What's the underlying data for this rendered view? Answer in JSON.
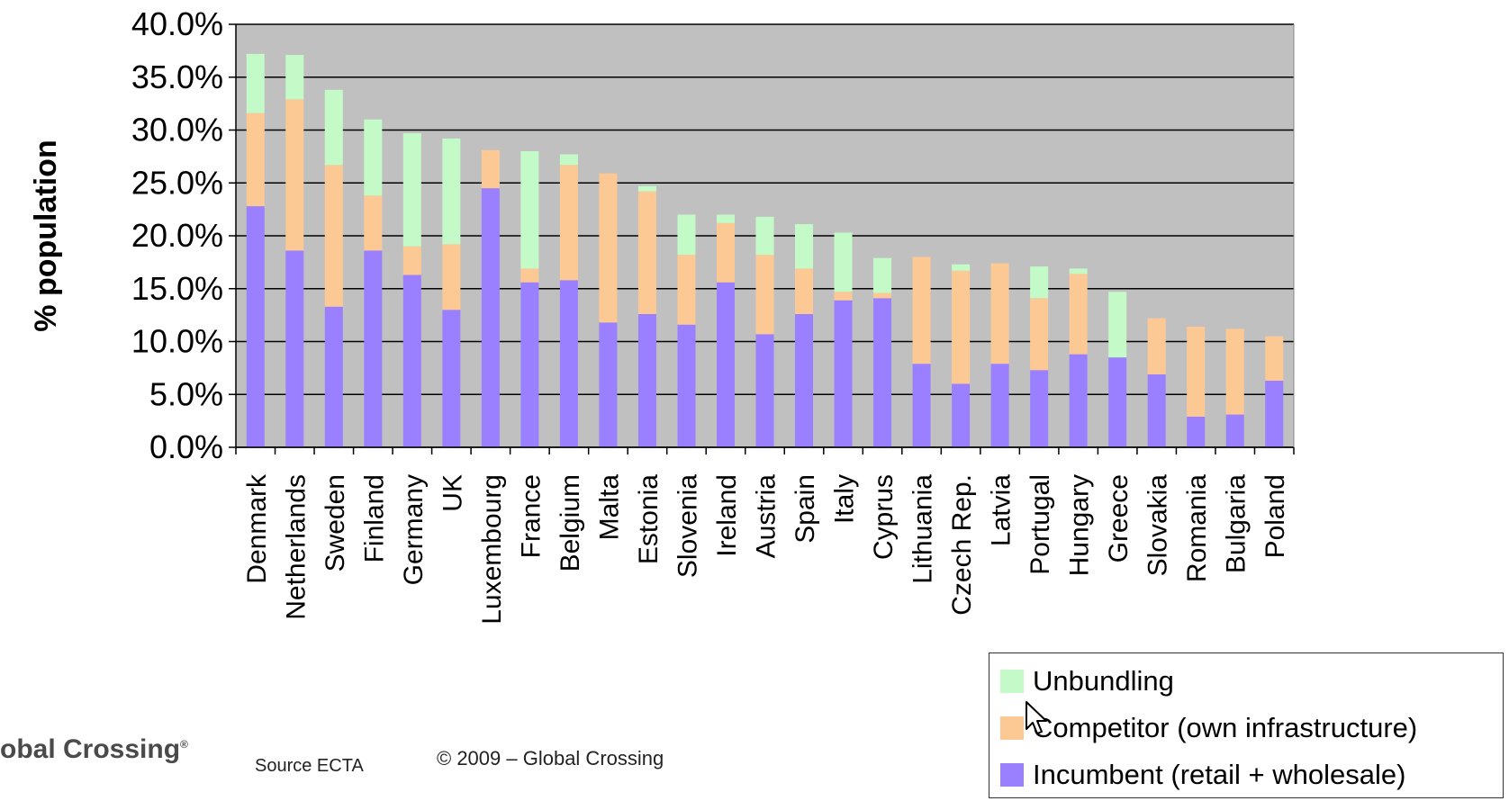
{
  "chart_data": {
    "type": "bar",
    "stacked": true,
    "ylabel": "% population",
    "ylim": [
      0,
      40
    ],
    "yticks": [
      "0.0%",
      "5.0%",
      "10.0%",
      "15.0%",
      "20.0%",
      "25.0%",
      "30.0%",
      "35.0%",
      "40.0%"
    ],
    "categories": [
      "Denmark",
      "Netherlands",
      "Sweden",
      "Finland",
      "Germany",
      "UK",
      "Luxembourg",
      "France",
      "Belgium",
      "Malta",
      "Estonia",
      "Slovenia",
      "Ireland",
      "Austria",
      "Spain",
      "Italy",
      "Cyprus",
      "Lithuania",
      "Czech Rep.",
      "Latvia",
      "Portugal",
      "Hungary",
      "Greece",
      "Slovakia",
      "Romania",
      "Bulgaria",
      "Poland"
    ],
    "series": [
      {
        "name": "Incumbent (retail + wholesale)",
        "color": "#9a80ff",
        "values": [
          22.8,
          18.6,
          13.3,
          18.6,
          16.3,
          13.0,
          24.5,
          15.6,
          15.8,
          11.8,
          12.6,
          11.6,
          15.6,
          10.7,
          12.6,
          13.9,
          14.1,
          7.9,
          6.0,
          7.9,
          7.3,
          8.8,
          8.5,
          6.9,
          2.9,
          3.1,
          6.3
        ]
      },
      {
        "name": "Competitor (own infrastructure)",
        "color": "#fcc994",
        "values": [
          8.8,
          14.3,
          13.4,
          5.2,
          2.7,
          6.2,
          3.6,
          1.3,
          10.9,
          14.1,
          11.6,
          6.6,
          5.6,
          7.5,
          4.3,
          0.8,
          0.5,
          10.1,
          10.7,
          9.5,
          6.8,
          7.6,
          0.0,
          5.3,
          8.5,
          8.1,
          4.2
        ]
      },
      {
        "name": "Unbundling",
        "color": "#c4fac8",
        "values": [
          5.6,
          4.2,
          7.1,
          7.2,
          10.7,
          10.0,
          0.0,
          11.1,
          1.0,
          0.0,
          0.5,
          3.8,
          0.8,
          3.6,
          4.2,
          5.6,
          3.3,
          0.0,
          0.6,
          0.0,
          3.0,
          0.5,
          6.2,
          0.0,
          0.0,
          0.0,
          0.0
        ]
      }
    ],
    "legend_position": "bottom-right",
    "grid": true,
    "plot_background": "#c0c0c0"
  },
  "legend": {
    "items": [
      {
        "label": "Unbundling",
        "color": "#c4fac8"
      },
      {
        "label": "Competitor (own infrastructure)",
        "color": "#fcc994"
      },
      {
        "label": "Incumbent (retail + wholesale)",
        "color": "#9a80ff"
      }
    ]
  },
  "footer": {
    "logo_text": "obal Crossing",
    "source": "Source ECTA",
    "copyright": "© 2009 – Global Crossing"
  }
}
